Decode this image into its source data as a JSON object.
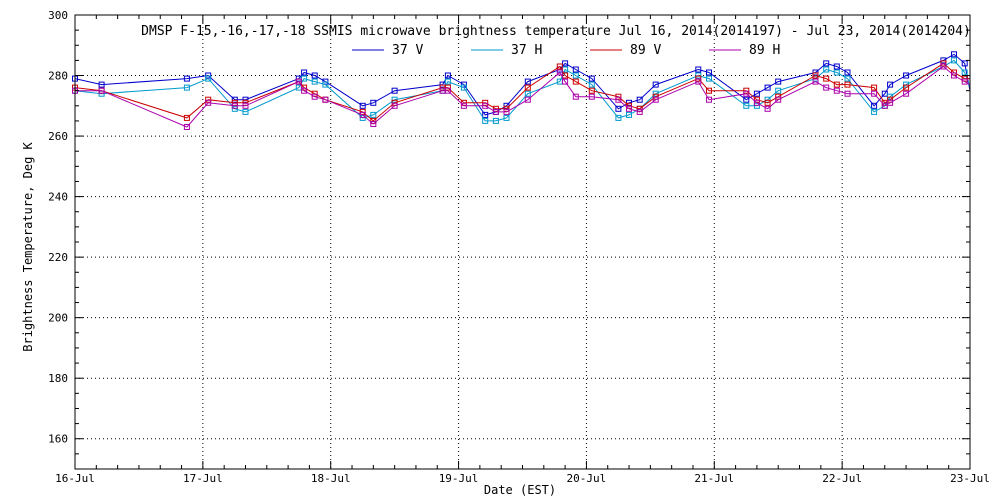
{
  "chart_data": {
    "type": "line",
    "title": "DMSP F-15,-16,-17,-18 SSMIS microwave brightness temperature Jul 16, 2014(2014197) - Jul 23, 2014(2014204)",
    "xlabel": "Date (EST)",
    "ylabel": "Brightness Temperature, Deg K",
    "xlim": [
      "2014-07-16",
      "2014-07-23"
    ],
    "ylim": [
      150,
      300
    ],
    "x_ticks": [
      "16-Jul",
      "17-Jul",
      "18-Jul",
      "19-Jul",
      "20-Jul",
      "21-Jul",
      "22-Jul",
      "23-Jul"
    ],
    "y_ticks": [
      160,
      180,
      200,
      220,
      240,
      260,
      280,
      300
    ],
    "grid": true,
    "legend_position": "top-center",
    "series": [
      {
        "name": "37 V",
        "color": "#0000cc",
        "points": [
          [
            "2014-07-16 00:00",
            279
          ],
          [
            "2014-07-16 05:00",
            277
          ],
          [
            "2014-07-16 21:00",
            279
          ],
          [
            "2014-07-17 01:00",
            280
          ],
          [
            "2014-07-17 06:00",
            272
          ],
          [
            "2014-07-17 08:00",
            272
          ],
          [
            "2014-07-17 18:00",
            279
          ],
          [
            "2014-07-17 19:00",
            281
          ],
          [
            "2014-07-17 21:00",
            280
          ],
          [
            "2014-07-17 23:00",
            278
          ],
          [
            "2014-07-18 06:00",
            270
          ],
          [
            "2014-07-18 08:00",
            271
          ],
          [
            "2014-07-18 12:00",
            275
          ],
          [
            "2014-07-18 21:00",
            277
          ],
          [
            "2014-07-18 22:00",
            280
          ],
          [
            "2014-07-19 01:00",
            277
          ],
          [
            "2014-07-19 05:00",
            267
          ],
          [
            "2014-07-19 07:00",
            268
          ],
          [
            "2014-07-19 09:00",
            270
          ],
          [
            "2014-07-19 13:00",
            278
          ],
          [
            "2014-07-19 19:00",
            282
          ],
          [
            "2014-07-19 20:00",
            284
          ],
          [
            "2014-07-19 22:00",
            282
          ],
          [
            "2014-07-20 01:00",
            279
          ],
          [
            "2014-07-20 06:00",
            269
          ],
          [
            "2014-07-20 08:00",
            271
          ],
          [
            "2014-07-20 10:00",
            272
          ],
          [
            "2014-07-20 13:00",
            277
          ],
          [
            "2014-07-20 21:00",
            282
          ],
          [
            "2014-07-20 23:00",
            281
          ],
          [
            "2014-07-21 06:00",
            272
          ],
          [
            "2014-07-21 08:00",
            274
          ],
          [
            "2014-07-21 10:00",
            276
          ],
          [
            "2014-07-21 12:00",
            278
          ],
          [
            "2014-07-21 19:00",
            281
          ],
          [
            "2014-07-21 21:00",
            284
          ],
          [
            "2014-07-21 23:00",
            283
          ],
          [
            "2014-07-22 01:00",
            281
          ],
          [
            "2014-07-22 06:00",
            270
          ],
          [
            "2014-07-22 08:00",
            274
          ],
          [
            "2014-07-22 09:00",
            277
          ],
          [
            "2014-07-22 12:00",
            280
          ],
          [
            "2014-07-22 19:00",
            285
          ],
          [
            "2014-07-22 21:00",
            287
          ],
          [
            "2014-07-22 23:00",
            284
          ],
          [
            "2014-07-23 00:00",
            275
          ]
        ]
      },
      {
        "name": "37 H",
        "color": "#0099cc",
        "points": [
          [
            "2014-07-16 00:00",
            275
          ],
          [
            "2014-07-16 05:00",
            274
          ],
          [
            "2014-07-16 21:00",
            276
          ],
          [
            "2014-07-17 01:00",
            279
          ],
          [
            "2014-07-17 06:00",
            269
          ],
          [
            "2014-07-17 08:00",
            268
          ],
          [
            "2014-07-17 18:00",
            276
          ],
          [
            "2014-07-17 19:00",
            279
          ],
          [
            "2014-07-17 21:00",
            278
          ],
          [
            "2014-07-17 23:00",
            277
          ],
          [
            "2014-07-18 06:00",
            266
          ],
          [
            "2014-07-18 08:00",
            267
          ],
          [
            "2014-07-18 12:00",
            272
          ],
          [
            "2014-07-18 21:00",
            275
          ],
          [
            "2014-07-18 22:00",
            278
          ],
          [
            "2014-07-19 01:00",
            276
          ],
          [
            "2014-07-19 05:00",
            265
          ],
          [
            "2014-07-19 07:00",
            265
          ],
          [
            "2014-07-19 09:00",
            266
          ],
          [
            "2014-07-19 13:00",
            274
          ],
          [
            "2014-07-19 19:00",
            278
          ],
          [
            "2014-07-19 20:00",
            282
          ],
          [
            "2014-07-19 22:00",
            280
          ],
          [
            "2014-07-20 01:00",
            277
          ],
          [
            "2014-07-20 06:00",
            266
          ],
          [
            "2014-07-20 08:00",
            267
          ],
          [
            "2014-07-20 10:00",
            269
          ],
          [
            "2014-07-20 13:00",
            274
          ],
          [
            "2014-07-20 21:00",
            280
          ],
          [
            "2014-07-20 23:00",
            279
          ],
          [
            "2014-07-21 06:00",
            270
          ],
          [
            "2014-07-21 08:00",
            270
          ],
          [
            "2014-07-21 10:00",
            272
          ],
          [
            "2014-07-21 12:00",
            275
          ],
          [
            "2014-07-21 19:00",
            279
          ],
          [
            "2014-07-21 21:00",
            282
          ],
          [
            "2014-07-21 23:00",
            281
          ],
          [
            "2014-07-22 01:00",
            279
          ],
          [
            "2014-07-22 06:00",
            268
          ],
          [
            "2014-07-22 08:00",
            270
          ],
          [
            "2014-07-22 09:00",
            273
          ],
          [
            "2014-07-22 12:00",
            277
          ],
          [
            "2014-07-22 19:00",
            283
          ],
          [
            "2014-07-22 21:00",
            285
          ],
          [
            "2014-07-22 23:00",
            281
          ],
          [
            "2014-07-23 00:00",
            276
          ]
        ]
      },
      {
        "name": "89 V",
        "color": "#cc0000",
        "points": [
          [
            "2014-07-16 00:00",
            276
          ],
          [
            "2014-07-16 05:00",
            275
          ],
          [
            "2014-07-16 21:00",
            266
          ],
          [
            "2014-07-17 01:00",
            272
          ],
          [
            "2014-07-17 06:00",
            271
          ],
          [
            "2014-07-17 08:00",
            271
          ],
          [
            "2014-07-17 18:00",
            278
          ],
          [
            "2014-07-17 19:00",
            276
          ],
          [
            "2014-07-17 21:00",
            274
          ],
          [
            "2014-07-17 23:00",
            272
          ],
          [
            "2014-07-18 06:00",
            268
          ],
          [
            "2014-07-18 08:00",
            265
          ],
          [
            "2014-07-18 12:00",
            271
          ],
          [
            "2014-07-18 21:00",
            276
          ],
          [
            "2014-07-18 22:00",
            276
          ],
          [
            "2014-07-19 01:00",
            271
          ],
          [
            "2014-07-19 05:00",
            271
          ],
          [
            "2014-07-19 07:00",
            269
          ],
          [
            "2014-07-19 09:00",
            269
          ],
          [
            "2014-07-19 13:00",
            276
          ],
          [
            "2014-07-19 19:00",
            283
          ],
          [
            "2014-07-19 20:00",
            280
          ],
          [
            "2014-07-19 22:00",
            278
          ],
          [
            "2014-07-20 01:00",
            275
          ],
          [
            "2014-07-20 06:00",
            273
          ],
          [
            "2014-07-20 08:00",
            270
          ],
          [
            "2014-07-20 10:00",
            269
          ],
          [
            "2014-07-20 13:00",
            273
          ],
          [
            "2014-07-20 21:00",
            279
          ],
          [
            "2014-07-20 23:00",
            275
          ],
          [
            "2014-07-21 06:00",
            275
          ],
          [
            "2014-07-21 08:00",
            272
          ],
          [
            "2014-07-21 10:00",
            271
          ],
          [
            "2014-07-21 12:00",
            273
          ],
          [
            "2014-07-21 19:00",
            280
          ],
          [
            "2014-07-21 21:00",
            279
          ],
          [
            "2014-07-21 23:00",
            277
          ],
          [
            "2014-07-22 01:00",
            277
          ],
          [
            "2014-07-22 06:00",
            276
          ],
          [
            "2014-07-22 08:00",
            271
          ],
          [
            "2014-07-22 09:00",
            272
          ],
          [
            "2014-07-22 12:00",
            276
          ],
          [
            "2014-07-22 19:00",
            284
          ],
          [
            "2014-07-22 21:00",
            281
          ],
          [
            "2014-07-22 23:00",
            279
          ],
          [
            "2014-07-23 00:00",
            279
          ]
        ]
      },
      {
        "name": "89 H",
        "color": "#aa00aa",
        "points": [
          [
            "2014-07-16 00:00",
            275
          ],
          [
            "2014-07-16 05:00",
            275
          ],
          [
            "2014-07-16 21:00",
            263
          ],
          [
            "2014-07-17 01:00",
            271
          ],
          [
            "2014-07-17 06:00",
            270
          ],
          [
            "2014-07-17 08:00",
            270
          ],
          [
            "2014-07-17 18:00",
            278
          ],
          [
            "2014-07-17 19:00",
            275
          ],
          [
            "2014-07-17 21:00",
            273
          ],
          [
            "2014-07-17 23:00",
            272
          ],
          [
            "2014-07-18 06:00",
            267
          ],
          [
            "2014-07-18 08:00",
            264
          ],
          [
            "2014-07-18 12:00",
            270
          ],
          [
            "2014-07-18 21:00",
            275
          ],
          [
            "2014-07-18 22:00",
            275
          ],
          [
            "2014-07-19 01:00",
            270
          ],
          [
            "2014-07-19 05:00",
            270
          ],
          [
            "2014-07-19 07:00",
            268
          ],
          [
            "2014-07-19 09:00",
            268
          ],
          [
            "2014-07-19 13:00",
            272
          ],
          [
            "2014-07-19 19:00",
            281
          ],
          [
            "2014-07-19 20:00",
            278
          ],
          [
            "2014-07-19 22:00",
            273
          ],
          [
            "2014-07-20 01:00",
            273
          ],
          [
            "2014-07-20 06:00",
            272
          ],
          [
            "2014-07-20 08:00",
            269
          ],
          [
            "2014-07-20 10:00",
            268
          ],
          [
            "2014-07-20 13:00",
            272
          ],
          [
            "2014-07-20 21:00",
            278
          ],
          [
            "2014-07-20 23:00",
            272
          ],
          [
            "2014-07-21 06:00",
            274
          ],
          [
            "2014-07-21 08:00",
            271
          ],
          [
            "2014-07-21 10:00",
            269
          ],
          [
            "2014-07-21 12:00",
            272
          ],
          [
            "2014-07-21 19:00",
            278
          ],
          [
            "2014-07-21 21:00",
            276
          ],
          [
            "2014-07-21 23:00",
            275
          ],
          [
            "2014-07-22 01:00",
            274
          ],
          [
            "2014-07-22 06:00",
            274
          ],
          [
            "2014-07-22 08:00",
            270
          ],
          [
            "2014-07-22 09:00",
            271
          ],
          [
            "2014-07-22 12:00",
            274
          ],
          [
            "2014-07-22 19:00",
            283
          ],
          [
            "2014-07-22 21:00",
            280
          ],
          [
            "2014-07-22 23:00",
            278
          ],
          [
            "2014-07-23 00:00",
            277
          ]
        ]
      }
    ]
  }
}
